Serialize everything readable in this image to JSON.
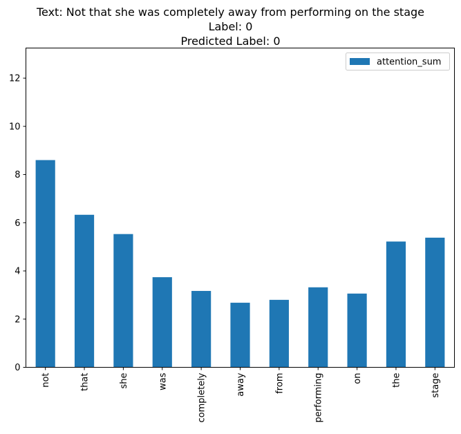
{
  "chart_data": {
    "type": "bar",
    "title_lines": [
      "Text: Not that she was completely away from performing on the stage",
      "Label: 0",
      "Predicted Label: 0"
    ],
    "categories": [
      "not",
      "that",
      "she",
      "was",
      "completely",
      "away",
      "from",
      "performing",
      "on",
      "the",
      "stage"
    ],
    "series": [
      {
        "name": "attention_sum",
        "color": "#1f77b4",
        "values": [
          8.6,
          6.33,
          5.53,
          3.74,
          3.17,
          2.68,
          2.8,
          3.32,
          3.06,
          5.22,
          5.38
        ]
      }
    ],
    "ylim": [
      0,
      13.25
    ],
    "yticks": [
      0,
      2,
      4,
      6,
      8,
      10,
      12
    ],
    "legend_position": "top-right",
    "grid": false
  }
}
